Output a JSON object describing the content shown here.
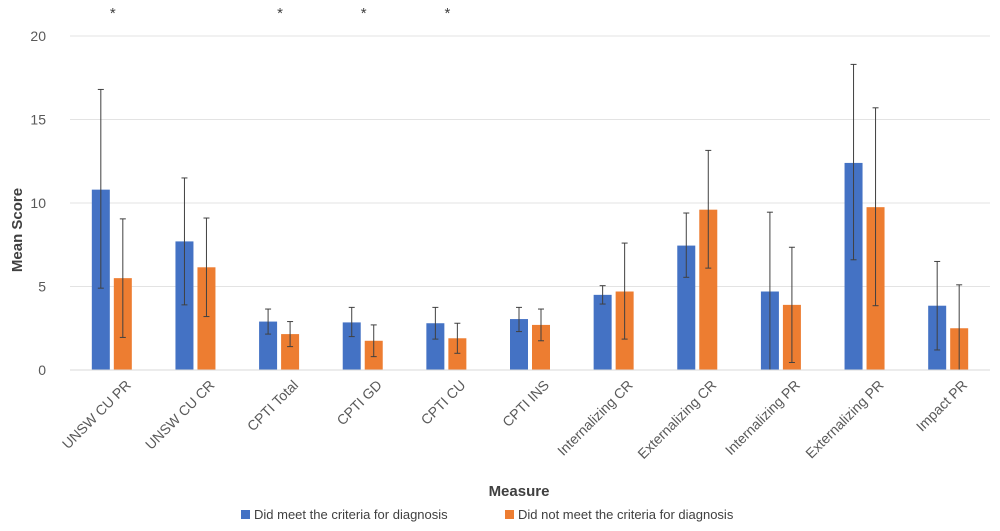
{
  "chart_data": {
    "type": "bar",
    "xlabel": "Measure",
    "ylabel": "Mean Score",
    "ylim": [
      0,
      20
    ],
    "yticks": [
      "0",
      "5",
      "10",
      "15",
      "20"
    ],
    "grid": true,
    "legend_position": "bottom",
    "categories": [
      "UNSW CU PR",
      "UNSW CU CR",
      "CPTI Total",
      "CPTI GD",
      "CPTI CU",
      "CPTI INS",
      "Internalizing CR",
      "Externalizing CR",
      "Internalizing PR",
      "Externalizing PR",
      "Impact PR"
    ],
    "significance": [
      "*",
      "",
      "*",
      "*",
      "*",
      "",
      "",
      "",
      "",
      "",
      ""
    ],
    "series": [
      {
        "name": "Did meet the criteria for diagnosis",
        "color": "#4472C4",
        "values": [
          10.8,
          7.7,
          2.9,
          2.85,
          2.8,
          3.05,
          4.5,
          7.45,
          4.7,
          12.4,
          3.85
        ],
        "err_low": [
          4.9,
          3.9,
          2.15,
          2.0,
          1.85,
          2.3,
          3.95,
          5.55,
          0.0,
          6.6,
          1.2
        ],
        "err_high": [
          16.8,
          11.5,
          3.65,
          3.75,
          3.75,
          3.75,
          5.05,
          9.4,
          9.45,
          18.3,
          6.5
        ]
      },
      {
        "name": "Did not meet the criteria for diagnosis",
        "color": "#ED7D31",
        "values": [
          5.5,
          6.15,
          2.15,
          1.75,
          1.9,
          2.7,
          4.7,
          9.6,
          3.9,
          9.75,
          2.5
        ],
        "err_low": [
          1.95,
          3.2,
          1.4,
          0.8,
          1.0,
          1.75,
          1.85,
          6.1,
          0.45,
          3.85,
          0.0
        ],
        "err_high": [
          9.05,
          9.1,
          2.9,
          2.7,
          2.8,
          3.65,
          7.6,
          13.15,
          7.35,
          15.7,
          5.1
        ]
      }
    ]
  }
}
